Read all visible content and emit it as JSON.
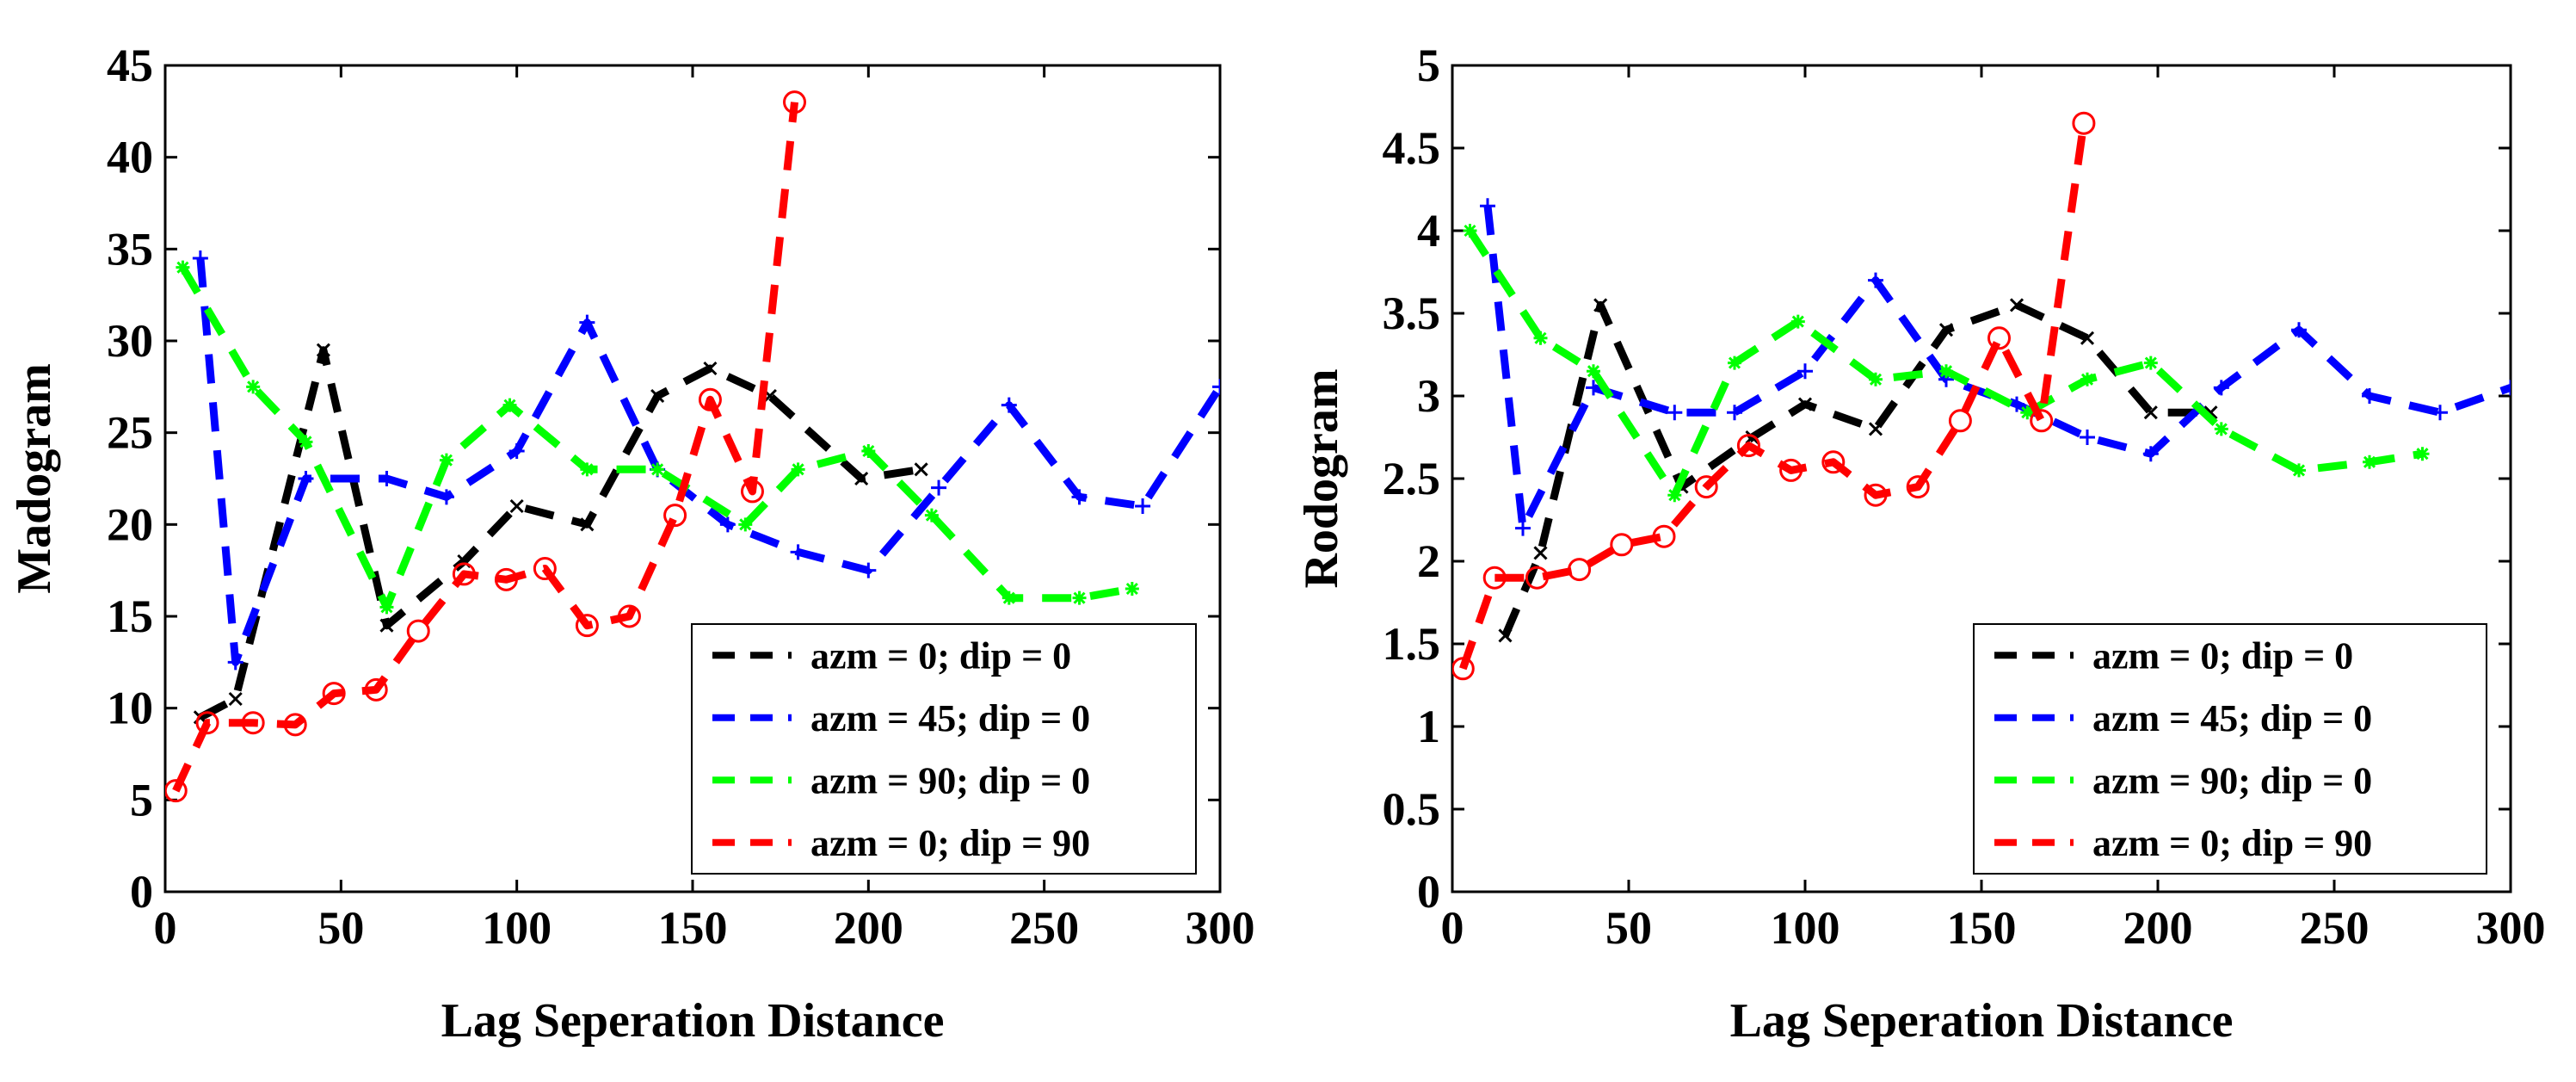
{
  "chart_data": [
    {
      "type": "line",
      "title": "",
      "xlabel": "Lag Seperation Distance",
      "ylabel": "Madogram",
      "xlim": [
        0,
        300
      ],
      "ylim": [
        0,
        45
      ],
      "xticks": [
        0,
        50,
        100,
        150,
        200,
        250,
        300
      ],
      "yticks": [
        0,
        5,
        10,
        15,
        20,
        25,
        30,
        35,
        40,
        45
      ],
      "grid": false,
      "legend_position": "bottom-right",
      "series": [
        {
          "name": "azm = 0; dip = 0",
          "color": "#000000",
          "marker": "x",
          "x": [
            10,
            20,
            45,
            63,
            85,
            100,
            120,
            140,
            155,
            172,
            198,
            215
          ],
          "y": [
            9.5,
            10.5,
            29.5,
            14.5,
            18,
            21,
            20,
            27,
            28.5,
            27,
            22.5,
            23
          ]
        },
        {
          "name": "azm = 45; dip = 0",
          "color": "#0000ff",
          "marker": "+",
          "x": [
            10,
            20,
            40,
            63,
            80,
            100,
            120,
            140,
            160,
            180,
            200,
            220,
            240,
            260,
            278,
            300
          ],
          "y": [
            34.5,
            12.5,
            22.5,
            22.5,
            21.5,
            24,
            31,
            23,
            20,
            18.5,
            17.5,
            22,
            26.5,
            21.5,
            21,
            27.5
          ]
        },
        {
          "name": "azm = 90; dip = 0",
          "color": "#00ff00",
          "marker": "*",
          "x": [
            5,
            25,
            40,
            63,
            80,
            98,
            120,
            140,
            165,
            180,
            200,
            218,
            240,
            260,
            275
          ],
          "y": [
            34,
            27.5,
            24.5,
            15.5,
            23.5,
            26.5,
            23,
            23,
            20,
            23,
            24,
            20.5,
            16,
            16,
            16.5
          ]
        },
        {
          "name": "azm = 0; dip = 90",
          "color": "#ff0000",
          "marker": "o",
          "x": [
            3,
            12,
            25,
            37,
            48,
            60,
            72,
            85,
            97,
            108,
            120,
            132,
            145,
            155,
            167,
            179
          ],
          "y": [
            5.5,
            9.2,
            9.2,
            9.1,
            10.8,
            11,
            14.2,
            17.3,
            17,
            17.6,
            14.5,
            15,
            20.5,
            26.8,
            21.8,
            43
          ]
        }
      ]
    },
    {
      "type": "line",
      "title": "",
      "xlabel": "Lag Seperation Distance",
      "ylabel": "Rodogram",
      "xlim": [
        0,
        300
      ],
      "ylim": [
        0,
        5
      ],
      "xticks": [
        0,
        50,
        100,
        150,
        200,
        250,
        300
      ],
      "yticks": [
        0,
        0.5,
        1,
        1.5,
        2,
        2.5,
        3,
        3.5,
        4,
        4.5,
        5
      ],
      "grid": false,
      "legend_position": "bottom-right",
      "series": [
        {
          "name": "azm = 0; dip = 0",
          "color": "#000000",
          "marker": "x",
          "x": [
            15,
            25,
            42,
            65,
            85,
            100,
            120,
            140,
            160,
            180,
            198,
            215
          ],
          "y": [
            1.55,
            2.05,
            3.55,
            2.45,
            2.75,
            2.95,
            2.8,
            3.4,
            3.55,
            3.35,
            2.9,
            2.9
          ]
        },
        {
          "name": "azm = 45; dip = 0",
          "color": "#0000ff",
          "marker": "+",
          "x": [
            10,
            20,
            40,
            63,
            80,
            100,
            120,
            140,
            160,
            180,
            198,
            218,
            240,
            260,
            280,
            300
          ],
          "y": [
            4.15,
            2.2,
            3.05,
            2.9,
            2.9,
            3.15,
            3.7,
            3.1,
            2.95,
            2.75,
            2.65,
            3.05,
            3.4,
            3,
            2.9,
            3.05
          ]
        },
        {
          "name": "azm = 90; dip = 0",
          "color": "#00ff00",
          "marker": "*",
          "x": [
            5,
            25,
            40,
            63,
            80,
            98,
            120,
            140,
            163,
            180,
            198,
            218,
            240,
            260,
            275
          ],
          "y": [
            4,
            3.35,
            3.15,
            2.4,
            3.2,
            3.45,
            3.1,
            3.15,
            2.9,
            3.1,
            3.2,
            2.8,
            2.55,
            2.6,
            2.65
          ]
        },
        {
          "name": "azm = 0; dip = 90",
          "color": "#ff0000",
          "marker": "o",
          "x": [
            3,
            12,
            24,
            36,
            48,
            60,
            72,
            84,
            96,
            108,
            120,
            132,
            144,
            155,
            167,
            179
          ],
          "y": [
            1.35,
            1.9,
            1.9,
            1.95,
            2.1,
            2.15,
            2.45,
            2.7,
            2.55,
            2.6,
            2.4,
            2.45,
            2.85,
            3.35,
            2.85,
            4.65
          ]
        }
      ]
    }
  ]
}
